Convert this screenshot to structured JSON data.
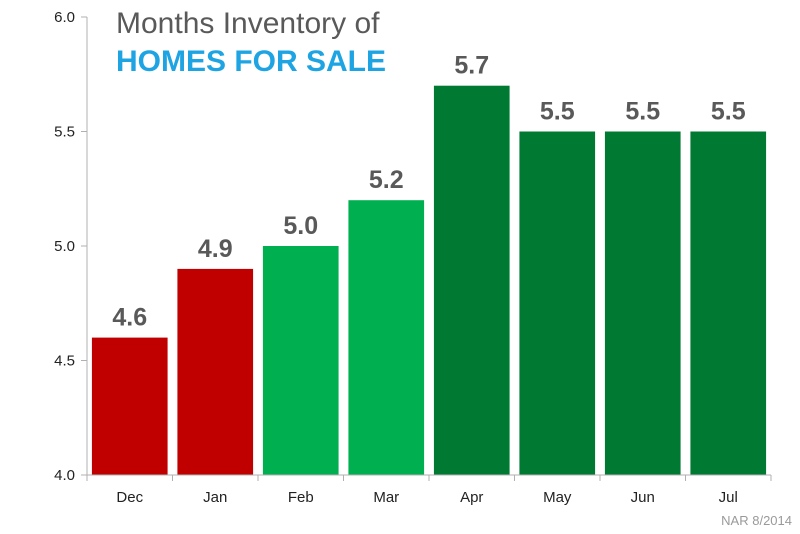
{
  "chart_data": {
    "type": "bar",
    "title_line1": "Months Inventory of",
    "title_line2": "HOMES FOR SALE",
    "categories": [
      "Dec",
      "Jan",
      "Feb",
      "Mar",
      "Apr",
      "May",
      "Jun",
      "Jul"
    ],
    "values": [
      4.6,
      4.9,
      5.0,
      5.2,
      5.7,
      5.5,
      5.5,
      5.5
    ],
    "value_labels": [
      "4.6",
      "4.9",
      "5.0",
      "5.2",
      "5.7",
      "5.5",
      "5.5",
      "5.5"
    ],
    "bar_colors": [
      "#c00000",
      "#c00000",
      "#00b050",
      "#00b050",
      "#007a33",
      "#007a33",
      "#007a33",
      "#007a33"
    ],
    "ylim": [
      4.0,
      6.0
    ],
    "yticks": [
      4.0,
      4.5,
      5.0,
      5.5,
      6.0
    ],
    "ytick_labels": [
      "4.0",
      "4.5",
      "5.0",
      "5.5",
      "6.0"
    ],
    "xlabel": "",
    "ylabel": "",
    "grid": false,
    "source": "NAR 8/2014",
    "colors": {
      "title_accent": "#1ea4e3",
      "title_main": "#595959",
      "axis": "#b0b0b0"
    }
  }
}
